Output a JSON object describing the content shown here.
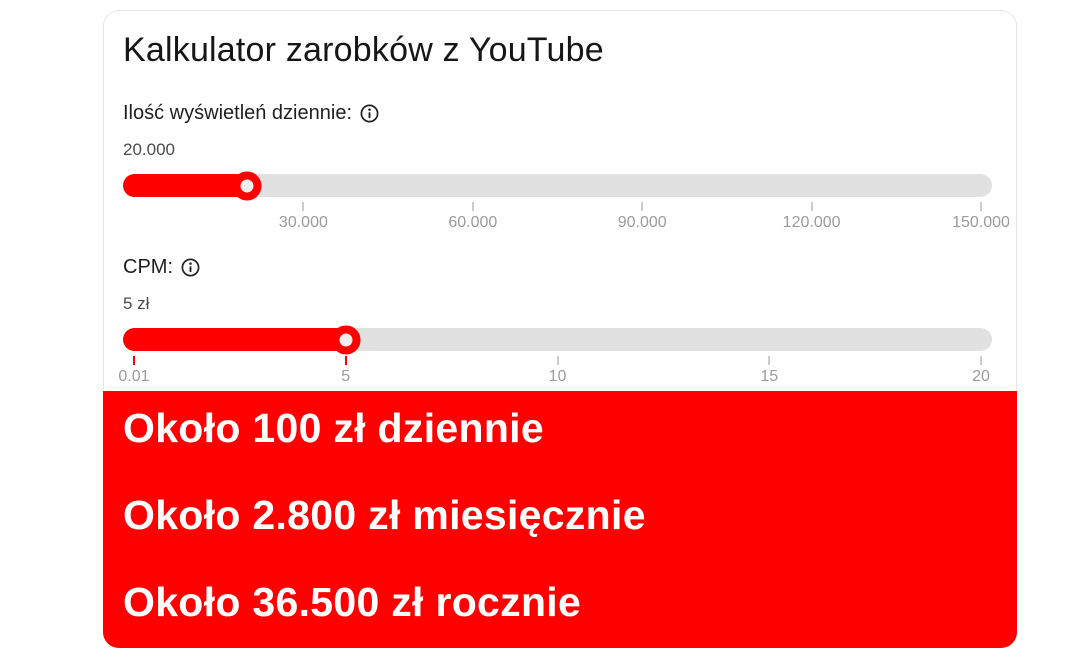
{
  "card": {
    "title": "Kalkulator zarobków z YouTube",
    "colors": {
      "accent_red": "#fe0000",
      "track_gray": "#e1e1e1",
      "tick_gray": "#cccccc",
      "thumb_inner": "#efefef",
      "result_text": "#ffffff"
    }
  },
  "sliders": [
    {
      "label": "Ilość wyświetleń dziennie:",
      "value_label": "20.000",
      "percent": 13.33,
      "ticks": [
        {
          "label": "30.000",
          "percent": 20,
          "mark_color": "gray"
        },
        {
          "label": "60.000",
          "percent": 40,
          "mark_color": "gray"
        },
        {
          "label": "90.000",
          "percent": 60,
          "mark_color": "gray"
        },
        {
          "label": "120.000",
          "percent": 80,
          "mark_color": "gray"
        },
        {
          "label": "150.000",
          "percent": 100,
          "mark_color": "gray"
        }
      ]
    },
    {
      "label": "CPM:",
      "value_label": "5 zł",
      "percent": 25,
      "ticks": [
        {
          "label": "0.01",
          "percent": 0,
          "mark_color": "red"
        },
        {
          "label": "5",
          "percent": 25,
          "mark_color": "red"
        },
        {
          "label": "10",
          "percent": 50,
          "mark_color": "gray"
        },
        {
          "label": "15",
          "percent": 75,
          "mark_color": "gray"
        },
        {
          "label": "20",
          "percent": 100,
          "mark_color": "gray"
        }
      ]
    }
  ],
  "results": {
    "lines": [
      "Około 100 zł dziennie",
      "Około 2.800 zł miesięcznie",
      "Około 36.500 zł rocznie"
    ]
  }
}
